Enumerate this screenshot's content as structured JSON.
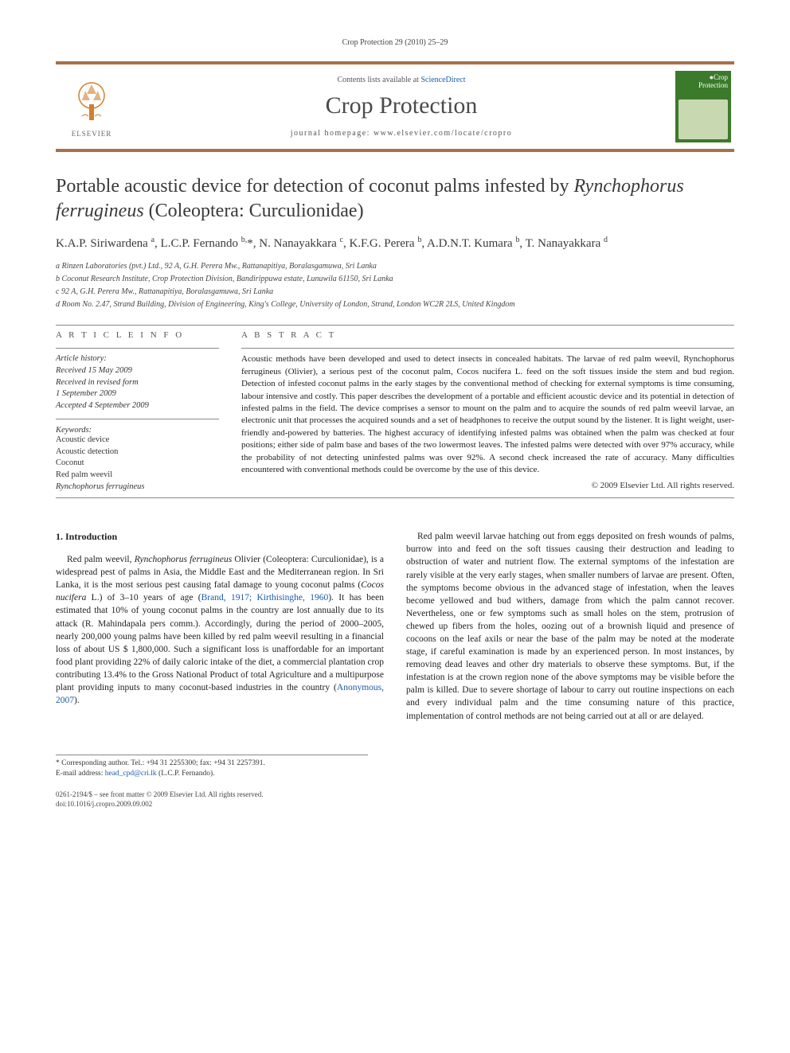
{
  "running_header": "Crop Protection 29 (2010) 25–29",
  "header": {
    "contents_prefix": "Contents lists available at ",
    "contents_link": "ScienceDirect",
    "journal_title": "Crop Protection",
    "homepage_prefix": "journal homepage: ",
    "homepage_url": "www.elsevier.com/locate/cropro",
    "elsevier_label": "ELSEVIER",
    "cover_top": "Crop",
    "cover_bottom": "Protection"
  },
  "title_pre": "Portable acoustic device for detection of coconut palms infested by ",
  "title_italic": "Rynchophorus ferrugineus",
  "title_post": " (Coleoptera: Curculionidae)",
  "authors_html": "K.A.P. Siriwardena <sup>a</sup>, L.C.P. Fernando <sup>b,</sup>*, N. Nanayakkara <sup>c</sup>, K.F.G. Perera <sup>b</sup>, A.D.N.T. Kumara <sup>b</sup>, T. Nanayakkara <sup>d</sup>",
  "affiliations": {
    "a": "a Rinzen Laboratories (pvt.) Ltd., 92 A, G.H. Perera Mw., Rattanapitiya, Boralasgamuwa, Sri Lanka",
    "b": "b Coconut Research Institute, Crop Protection Division, Bandirippuwa estate, Lunuwila 61150, Sri Lanka",
    "c": "c 92 A, G.H. Perera Mw., Rattanapitiya, Boralasgamuwa, Sri Lanka",
    "d": "d Room No. 2.47, Strand Building, Division of Engineering, King's College, University of London, Strand, London WC2R 2LS, United Kingdom"
  },
  "info_label": "A R T I C L E   I N F O",
  "abstract_label": "A B S T R A C T",
  "history": {
    "label": "Article history:",
    "received": "Received 15 May 2009",
    "revised": "Received in revised form",
    "revised_date": "1 September 2009",
    "accepted": "Accepted 4 September 2009"
  },
  "keywords_label": "Keywords:",
  "keywords": [
    "Acoustic device",
    "Acoustic detection",
    "Coconut",
    "Red palm weevil"
  ],
  "keywords_italic": "Rynchophorus ferrugineus",
  "abstract_text": "Acoustic methods have been developed and used to detect insects in concealed habitats. The larvae of red palm weevil, Rynchophorus ferrugineus (Olivier), a serious pest of the coconut palm, Cocos nucifera L. feed on the soft tissues inside the stem and bud region. Detection of infested coconut palms in the early stages by the conventional method of checking for external symptoms is time consuming, labour intensive and costly. This paper describes the development of a portable and efficient acoustic device and its potential in detection of infested palms in the field. The device comprises a sensor to mount on the palm and to acquire the sounds of red palm weevil larvae, an electronic unit that processes the acquired sounds and a set of headphones to receive the output sound by the listener. It is light weight, user-friendly and-powered by batteries. The highest accuracy of identifying infested palms was obtained when the palm was checked at four positions; either side of palm base and bases of the two lowermost leaves. The infested palms were detected with over 97% accuracy, while the probability of not detecting uninfested palms was over 92%. A second check increased the rate of accuracy. Many difficulties encountered with conventional methods could be overcome by the use of this device.",
  "copyright": "© 2009 Elsevier Ltd. All rights reserved.",
  "intro_heading": "1. Introduction",
  "intro_p1_pre": "Red palm weevil, ",
  "intro_p1_italic1": "Rynchophorus ferrugineus",
  "intro_p1_mid1": " Olivier (Coleoptera: Curculionidae), is a widespread pest of palms in Asia, the Middle East and the Mediterranean region. In Sri Lanka, it is the most serious pest causing fatal damage to young coconut palms (",
  "intro_p1_italic2": "Cocos nucifera",
  "intro_p1_mid2": " L.) of 3–10 years of age (",
  "intro_p1_ref": "Brand, 1917; Kirthisinghe, 1960",
  "intro_p1_mid3": "). It has been estimated that 10% of young coconut palms in the country are lost annually due to its attack (R. Mahindapala pers comm.). Accordingly, during the period of 2000–2005, nearly 200,000 young palms have been killed by red palm weevil resulting in a financial loss of about US $ 1,800,000. Such a significant loss is unaffordable for an important food plant providing 22% of daily caloric intake of the diet, a commercial plantation crop contributing 13.4% to the Gross National Product of total Agriculture and a multipurpose plant providing inputs to many coconut-based industries in the country (",
  "intro_p1_ref2": "Anonymous, 2007",
  "intro_p1_end": ").",
  "intro_p2": "Red palm weevil larvae hatching out from eggs deposited on fresh wounds of palms, burrow into and feed on the soft tissues causing their destruction and leading to obstruction of water and nutrient flow. The external symptoms of the infestation are rarely visible at the very early stages, when smaller numbers of larvae are present. Often, the symptoms become obvious in the advanced stage of infestation, when the leaves become yellowed and bud withers, damage from which the palm cannot recover. Nevertheless, one or few symptoms such as small holes on the stem, protrusion of chewed up fibers from the holes, oozing out of a brownish liquid and presence of cocoons on the leaf axils or near the base of the palm may be noted at the moderate stage, if careful examination is made by an experienced person. In most instances, by removing dead leaves and other dry materials to observe these symptoms. But, if the infestation is at the crown region none of the above symptoms may be visible before the palm is killed. Due to severe shortage of labour to carry out routine inspections on each and every individual palm and the time consuming nature of this practice, implementation of control methods are not being carried out at all or are delayed.",
  "footnote": {
    "corresponding": "* Corresponding author. Tel.: +94 31 2255300; fax: +94 31 2257391.",
    "email_label": "E-mail address: ",
    "email": "head_cpd@cri.lk",
    "email_suffix": " (L.C.P. Fernando)."
  },
  "bottom": {
    "line1": "0261-2194/$ – see front matter © 2009 Elsevier Ltd. All rights reserved.",
    "line2": "doi:10.1016/j.cropro.2009.09.002"
  },
  "colors": {
    "rule": "#a8704a",
    "link": "#1a5ba8",
    "cover_bg": "#3a7a2a",
    "text": "#1a1a1a"
  }
}
